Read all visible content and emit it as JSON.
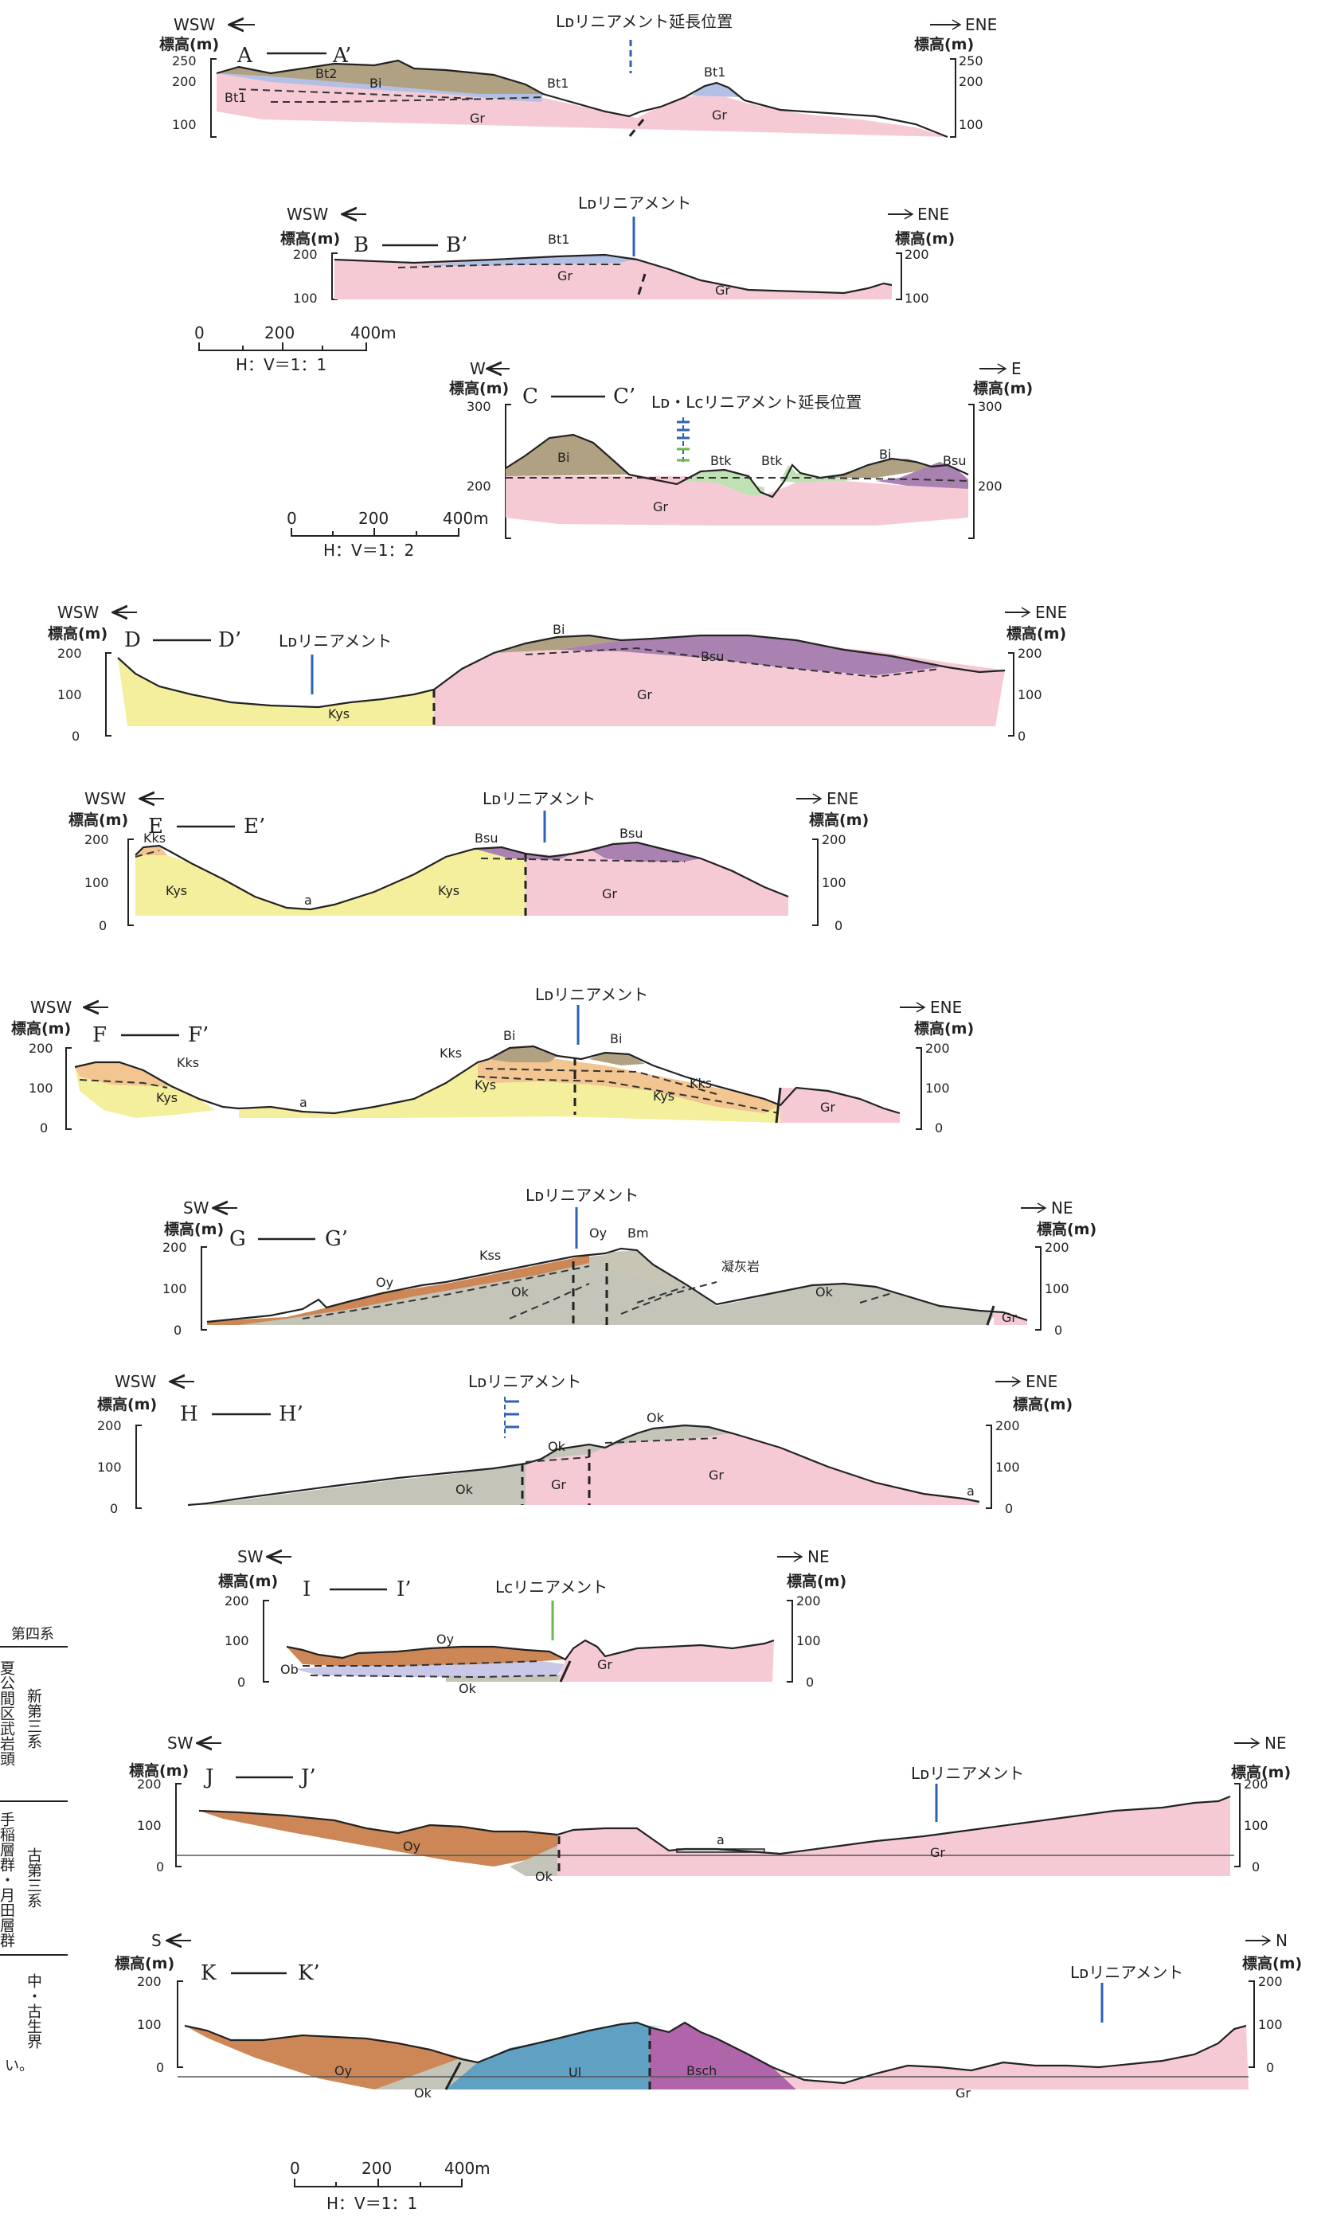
{
  "scales": {
    "upper": {
      "ticks": [
        "0",
        "200",
        "400m"
      ],
      "ratio": "H：V＝1：1"
    },
    "c": {
      "ticks": [
        "0",
        "200",
        "400m"
      ],
      "ratio": "H：V＝1：2"
    },
    "lower": {
      "ticks": [
        "0",
        "200",
        "400m"
      ],
      "ratio": "H：V＝1：1"
    }
  },
  "elev_label": "標高(m)",
  "sections": {
    "a": {
      "name": "A",
      "name2": "A’",
      "dir_left": "WSW",
      "dir_right": "ENE",
      "lineament": "Lᴅリニアメント延長位置",
      "ticks": [
        "250",
        "200",
        "100"
      ],
      "units": [
        "Bt2",
        "Bi",
        "Bt1",
        "Bt1",
        "Gr",
        "Bt1",
        "Gr"
      ]
    },
    "b": {
      "name": "B",
      "name2": "B’",
      "dir_left": "WSW",
      "dir_right": "ENE",
      "lineament": "Lᴅリニアメント",
      "ticks": [
        "200",
        "100"
      ],
      "units": [
        "Bt1",
        "Gr",
        "Gr"
      ]
    },
    "c": {
      "name": "C",
      "name2": "C’",
      "dir_left": "W",
      "dir_right": "E",
      "lineament": "Lᴅ・Lᴄリニアメント延長位置",
      "ticks": [
        "300",
        "200"
      ],
      "units": [
        "Bi",
        "Btk",
        "Btk",
        "Bi",
        "Bsu",
        "Gr"
      ]
    },
    "d": {
      "name": "D",
      "name2": "D’",
      "dir_left": "WSW",
      "dir_right": "ENE",
      "lineament": "Lᴅリニアメント",
      "ticks": [
        "200",
        "100",
        "0"
      ],
      "units": [
        "Bi",
        "Bsu",
        "Gr",
        "Kys"
      ]
    },
    "e": {
      "name": "E",
      "name2": "E’",
      "dir_left": "WSW",
      "dir_right": "ENE",
      "lineament": "Lᴅリニアメント",
      "ticks": [
        "200",
        "100",
        "0"
      ],
      "units": [
        "Kks",
        "Kys",
        "a",
        "Kys",
        "Bsu",
        "Bsu",
        "Gr"
      ]
    },
    "f": {
      "name": "F",
      "name2": "F’",
      "dir_left": "WSW",
      "dir_right": "ENE",
      "lineament": "Lᴅリニアメント",
      "ticks": [
        "200",
        "100",
        "0"
      ],
      "units": [
        "Kks",
        "Kys",
        "a",
        "Kks",
        "Bi",
        "Bi",
        "Kys",
        "Kks",
        "Kys",
        "Gr"
      ]
    },
    "g": {
      "name": "G",
      "name2": "G’",
      "dir_left": "SW",
      "dir_right": "NE",
      "lineament": "Lᴅリニアメント",
      "ticks": [
        "200",
        "100",
        "0"
      ],
      "units": [
        "Kss",
        "Oy",
        "Bm",
        "Oy",
        "Ok",
        "凝灰岩",
        "Ok",
        "Gr"
      ]
    },
    "h": {
      "name": "H",
      "name2": "H’",
      "dir_left": "WSW",
      "dir_right": "ENE",
      "lineament": "Lᴅリニアメント",
      "ticks": [
        "200",
        "100",
        "0"
      ],
      "units": [
        "Ok",
        "Ok",
        "Ok",
        "Gr",
        "Gr",
        "a"
      ]
    },
    "i": {
      "name": "I",
      "name2": "I’",
      "dir_left": "SW",
      "dir_right": "NE",
      "lineament": "Lᴄリニアメント",
      "ticks": [
        "200",
        "100",
        "0"
      ],
      "units": [
        "Oy",
        "Ob",
        "Ok",
        "Gr"
      ]
    },
    "j": {
      "name": "J",
      "name2": "J’",
      "dir_left": "SW",
      "dir_right": "NE",
      "lineament": "Lᴅリニアメント",
      "ticks": [
        "200",
        "100",
        "0"
      ],
      "units": [
        "Oy",
        "Ok",
        "a",
        "Gr"
      ]
    },
    "k": {
      "name": "K",
      "name2": "K’",
      "dir_left": "S",
      "dir_right": "N",
      "lineament": "Lᴅリニアメント",
      "ticks": [
        "200",
        "100",
        "0"
      ],
      "units": [
        "Oy",
        "Ok",
        "Ul",
        "Bsch",
        "Gr"
      ]
    }
  },
  "legend": {
    "quaternary": "第四系",
    "neogene": "新第三系",
    "neogene_sub": "夏公間区武岩頭",
    "paleogene": "古第三系",
    "paleogene_sub": "手稲層群・月田層群",
    "meso": "中・古生界",
    "note": "い。"
  }
}
